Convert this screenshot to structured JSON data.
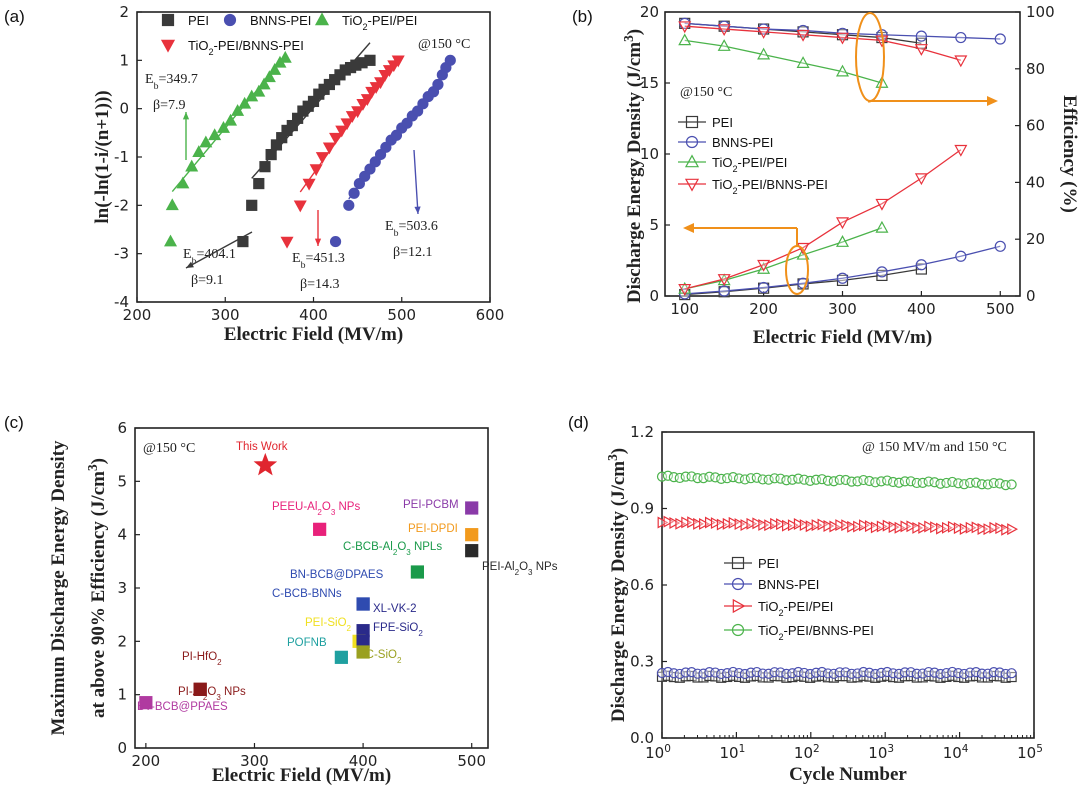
{
  "chart_data": [
    {
      "type": "scatter",
      "panel_label": "(a)",
      "xlabel": "Electric Field (MV/m)",
      "ylabel": "ln(-ln(1-i/(n+1)))",
      "xlim": [
        200,
        600
      ],
      "ylim": [
        -4,
        2
      ],
      "xticks": [
        200,
        300,
        400,
        500,
        600
      ],
      "yticks": [
        -4,
        -3,
        -2,
        -1,
        0,
        1,
        2
      ],
      "condition": "@150 °C",
      "series": [
        {
          "name": "PEI",
          "marker": "square",
          "color": "#3a3a3a",
          "x": [
            320,
            330,
            338,
            345,
            352,
            358,
            364,
            370,
            376,
            382,
            388,
            394,
            400,
            406,
            412,
            418,
            424,
            430,
            436,
            442,
            448,
            455,
            464
          ],
          "y": [
            -2.75,
            -2.0,
            -1.55,
            -1.2,
            -0.95,
            -0.75,
            -0.6,
            -0.45,
            -0.35,
            -0.2,
            -0.05,
            0.05,
            0.15,
            0.3,
            0.4,
            0.5,
            0.6,
            0.7,
            0.8,
            0.85,
            0.9,
            0.95,
            1.0
          ]
        },
        {
          "name": "BNNS-PEI",
          "marker": "circle",
          "color": "#4a4fb0",
          "x": [
            425,
            440,
            446,
            452,
            458,
            464,
            470,
            476,
            482,
            488,
            494,
            500,
            506,
            512,
            518,
            524,
            530,
            536,
            541,
            546,
            550,
            555
          ],
          "y": [
            -2.75,
            -2.0,
            -1.75,
            -1.55,
            -1.4,
            -1.25,
            -1.1,
            -0.95,
            -0.8,
            -0.65,
            -0.55,
            -0.4,
            -0.3,
            -0.15,
            -0.05,
            0.1,
            0.25,
            0.35,
            0.5,
            0.7,
            0.85,
            1.0
          ]
        },
        {
          "name": "TiO2-PEI/PEI",
          "marker": "triangle-up",
          "color": "#4bb34b",
          "x": [
            238,
            240,
            252,
            262,
            270,
            278,
            288,
            298,
            306,
            314,
            322,
            330,
            338,
            344,
            350,
            356,
            362,
            368
          ],
          "y": [
            -2.75,
            -2.0,
            -1.55,
            -1.2,
            -0.9,
            -0.7,
            -0.55,
            -0.4,
            -0.25,
            -0.05,
            0.1,
            0.25,
            0.35,
            0.5,
            0.65,
            0.8,
            0.95,
            1.05
          ]
        },
        {
          "name": "TiO2-PEI/BNNS-PEI",
          "marker": "triangle-down",
          "color": "#e8323c",
          "x": [
            370,
            385,
            395,
            403,
            410,
            418,
            425,
            432,
            438,
            444,
            450,
            456,
            461,
            466,
            471,
            476,
            481,
            486,
            491,
            496
          ],
          "y": [
            -2.75,
            -2.0,
            -1.55,
            -1.25,
            -1.0,
            -0.8,
            -0.6,
            -0.45,
            -0.3,
            -0.15,
            -0.05,
            0.1,
            0.2,
            0.35,
            0.45,
            0.55,
            0.7,
            0.8,
            0.9,
            1.0
          ]
        }
      ],
      "annotations": [
        {
          "text_main": "E",
          "text_sub": "b",
          "text_rest": "=349.7",
          "beta": "β=7.9",
          "color": "#4bb34b"
        },
        {
          "text_main": "E",
          "text_sub": "b",
          "text_rest": "=404.1",
          "beta": "β=9.1",
          "color": "#3a3a3a"
        },
        {
          "text_main": "E",
          "text_sub": "b",
          "text_rest": "=451.3",
          "beta": "β=14.3",
          "color": "#e8323c"
        },
        {
          "text_main": "E",
          "text_sub": "b",
          "text_rest": "=503.6",
          "beta": "β=12.1",
          "color": "#4a4fb0"
        }
      ]
    },
    {
      "type": "line",
      "panel_label": "(b)",
      "xlabel": "Electric Field (MV/m)",
      "ylabel": "Discharge Energy Density (J/cm3)",
      "ylabel_parts": [
        "Discharge Energy Density (J/cm",
        "3",
        ")"
      ],
      "y2label": "Efficiency (%)",
      "xlim": [
        75,
        525
      ],
      "ylim": [
        0,
        20
      ],
      "y2lim": [
        0,
        100
      ],
      "xticks": [
        100,
        200,
        300,
        400,
        500
      ],
      "yticks": [
        0,
        5,
        10,
        15,
        20
      ],
      "y2ticks": [
        0,
        20,
        40,
        60,
        80,
        100
      ],
      "condition": "@150 °C",
      "series": [
        {
          "name": "PEI",
          "marker": "square",
          "color": "#3a3a3a",
          "x": [
            100,
            150,
            200,
            250,
            300,
            350,
            400
          ],
          "energy": [
            0.1,
            0.3,
            0.55,
            0.85,
            1.1,
            1.45,
            1.9
          ],
          "efficiency": [
            96,
            95,
            94,
            93,
            92,
            91,
            89
          ]
        },
        {
          "name": "BNNS-PEI",
          "marker": "circle",
          "color": "#4a4fb0",
          "x": [
            100,
            150,
            200,
            250,
            300,
            350,
            400,
            450,
            500
          ],
          "energy": [
            0.15,
            0.35,
            0.6,
            0.9,
            1.25,
            1.7,
            2.2,
            2.8,
            3.5
          ],
          "efficiency": [
            96,
            95,
            94,
            93.5,
            92.5,
            92,
            91.5,
            91,
            90.5
          ]
        },
        {
          "name": "TiO2-PEI/PEI",
          "marker": "triangle-up",
          "color": "#4bb34b",
          "x": [
            100,
            150,
            200,
            250,
            300,
            350
          ],
          "energy": [
            0.5,
            1.1,
            1.9,
            2.9,
            3.8,
            4.8
          ],
          "efficiency": [
            90,
            88,
            85,
            82,
            79,
            75
          ]
        },
        {
          "name": "TiO2-PEI/BNNS-PEI",
          "marker": "triangle-down",
          "color": "#e8323c",
          "x": [
            100,
            150,
            200,
            250,
            300,
            350,
            400,
            450
          ],
          "energy": [
            0.5,
            1.2,
            2.2,
            3.4,
            5.2,
            6.5,
            8.3,
            10.3
          ],
          "efficiency": [
            95,
            94,
            93,
            92,
            91,
            90,
            87,
            83
          ]
        }
      ]
    },
    {
      "type": "scatter",
      "panel_label": "(c)",
      "xlabel": "Electric Field (MV/m)",
      "ylabel_line1": "Maximun Discharge Energy Density",
      "ylabel_line2_parts": [
        "at above 90% Efficiency (J/cm",
        "3",
        ")"
      ],
      "xlim": [
        190,
        515
      ],
      "ylim": [
        0,
        6
      ],
      "xticks": [
        200,
        300,
        400,
        500
      ],
      "yticks": [
        0,
        1,
        2,
        3,
        4,
        5,
        6
      ],
      "condition": "@150 °C",
      "points": [
        {
          "label": "This Work",
          "x": 310,
          "y": 5.3,
          "color": "#e0262f",
          "marker": "star"
        },
        {
          "label_parts": [
            "PEEU-Al",
            "2",
            "O",
            "3",
            " NPs"
          ],
          "x": 360,
          "y": 4.1,
          "color": "#e8217a",
          "marker": "square"
        },
        {
          "label": "PEI-PCBM",
          "x": 500,
          "y": 4.5,
          "color": "#8a3aa8",
          "marker": "square"
        },
        {
          "label": "PEI-DPDI",
          "x": 500,
          "y": 4.0,
          "color": "#f29a1d",
          "marker": "square"
        },
        {
          "label_parts": [
            "C-BCB-Al",
            "2",
            "O",
            "3",
            " NPLs"
          ],
          "x": 450,
          "y": 3.3,
          "color": "#1a9a4a",
          "marker": "square"
        },
        {
          "label_parts": [
            "PEI-",
            "",
            "Al",
            "2",
            "O",
            "3",
            " NPs"
          ],
          "x": 500,
          "y": 3.7,
          "color": "#2a2a2a",
          "marker": "square"
        },
        {
          "label": "BN-BCB@DPAES",
          "x": 400,
          "y": 2.7,
          "color": "#2f4bb0",
          "marker": "square"
        },
        {
          "label": "C-BCB-BNNs",
          "x": 400,
          "y": 2.7,
          "color": "#2f4bb0",
          "marker": "square"
        },
        {
          "label": "XL-VK-2",
          "x": 400,
          "y": 2.2,
          "color": "#2a2a8a",
          "marker": "square"
        },
        {
          "label_parts": [
            "PEI-SiO",
            "2",
            "",
            "",
            ""
          ],
          "x": 400,
          "y": 2.0,
          "color": "#f0e020",
          "marker": "square"
        },
        {
          "label_parts": [
            "FPE-SiO",
            "2",
            "",
            "",
            ""
          ],
          "x": 400,
          "y": 2.0,
          "color": "#2a2a8a",
          "marker": "square"
        },
        {
          "label": "POFNB",
          "x": 380,
          "y": 1.7,
          "color": "#1fa0a0",
          "marker": "square"
        },
        {
          "label_parts": [
            "PC-SiO",
            "2",
            "",
            "",
            ""
          ],
          "x": 400,
          "y": 1.8,
          "color": "#9aa020",
          "marker": "square"
        },
        {
          "label_parts": [
            "PI-HfO",
            "2",
            "",
            "",
            ""
          ],
          "x": 250,
          "y": 1.1,
          "color": "#8a1a1a",
          "marker": "square"
        },
        {
          "label_parts": [
            "PI-Al",
            "2",
            "O",
            "3",
            " NPs"
          ],
          "x": 250,
          "y": 1.1,
          "color": "#8a1a1a",
          "marker": "square"
        },
        {
          "label": "BT-BCB@PPAES",
          "x": 200,
          "y": 0.85,
          "color": "#b03aa0",
          "marker": "square"
        }
      ]
    },
    {
      "type": "line",
      "panel_label": "(d)",
      "xlabel": "Cycle Number",
      "ylabel_parts": [
        "Discharge Energy Density (J/cm",
        "3",
        ")"
      ],
      "xscale": "log",
      "xlim": [
        1,
        100000
      ],
      "ylim": [
        0.0,
        1.2
      ],
      "xticks": [
        1,
        10,
        100,
        1000,
        10000,
        100000
      ],
      "xtick_labels": [
        [
          "10",
          "0"
        ],
        [
          "10",
          "1"
        ],
        [
          "10",
          "2"
        ],
        [
          "10",
          "3"
        ],
        [
          "10",
          "4"
        ],
        [
          "10",
          "5"
        ]
      ],
      "yticks": [
        0.0,
        0.3,
        0.6,
        0.9,
        1.2
      ],
      "ytick_labels": [
        "0.0",
        "0.3",
        "0.6",
        "0.9",
        "1.2"
      ],
      "condition": "@ 150 MV/m and 150 °C",
      "series": [
        {
          "name": "PEI",
          "marker": "half-square",
          "color": "#3a3a3a",
          "start": 1,
          "end": 50000,
          "y": 0.24
        },
        {
          "name": "BNNS-PEI",
          "marker": "half-circle",
          "color": "#4a4fb0",
          "start": 1,
          "end": 50000,
          "y": 0.255
        },
        {
          "name": "TiO2-PEI/PEI",
          "marker": "half-triangle-right",
          "color": "#e8323c",
          "start": 1,
          "end": 50000,
          "y_start": 0.845,
          "y_end": 0.82
        },
        {
          "name": "TiO2-PEI/BNNS-PEI",
          "marker": "half-circle",
          "color": "#4bb34b",
          "start": 1,
          "end": 50000,
          "y_start": 1.025,
          "y_end": 0.995
        }
      ]
    }
  ],
  "legend_names": {
    "PEI": "PEI",
    "BNNS-PEI": "BNNS-PEI",
    "TiO2-PEI/PEI": [
      "TiO",
      "2",
      "-PEI/PEI"
    ],
    "TiO2-PEI/BNNS-PEI": [
      "TiO",
      "2",
      "-PEI/BNNS-PEI"
    ]
  }
}
